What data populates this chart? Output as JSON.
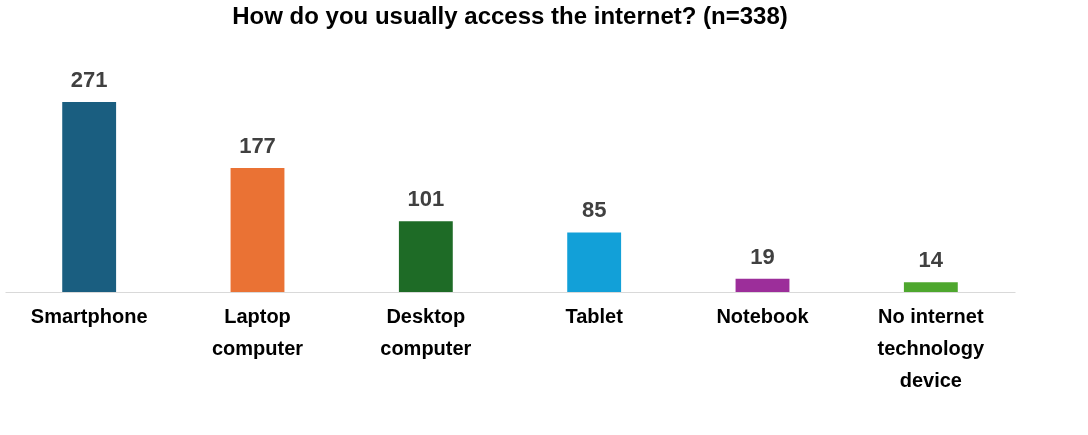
{
  "chart_data": {
    "type": "bar",
    "title": "How do you usually access the internet? (n=338)",
    "categories": [
      "Smartphone",
      "Laptop computer",
      "Desktop computer",
      "Tablet",
      "Notebook",
      "No internet technology device"
    ],
    "values": [
      271,
      177,
      101,
      85,
      19,
      14
    ],
    "colors": [
      "#1a5e80",
      "#ea7234",
      "#1e6b26",
      "#12a0d8",
      "#9c2e9a",
      "#4ea72e"
    ],
    "data_labels": true,
    "grid": false
  }
}
